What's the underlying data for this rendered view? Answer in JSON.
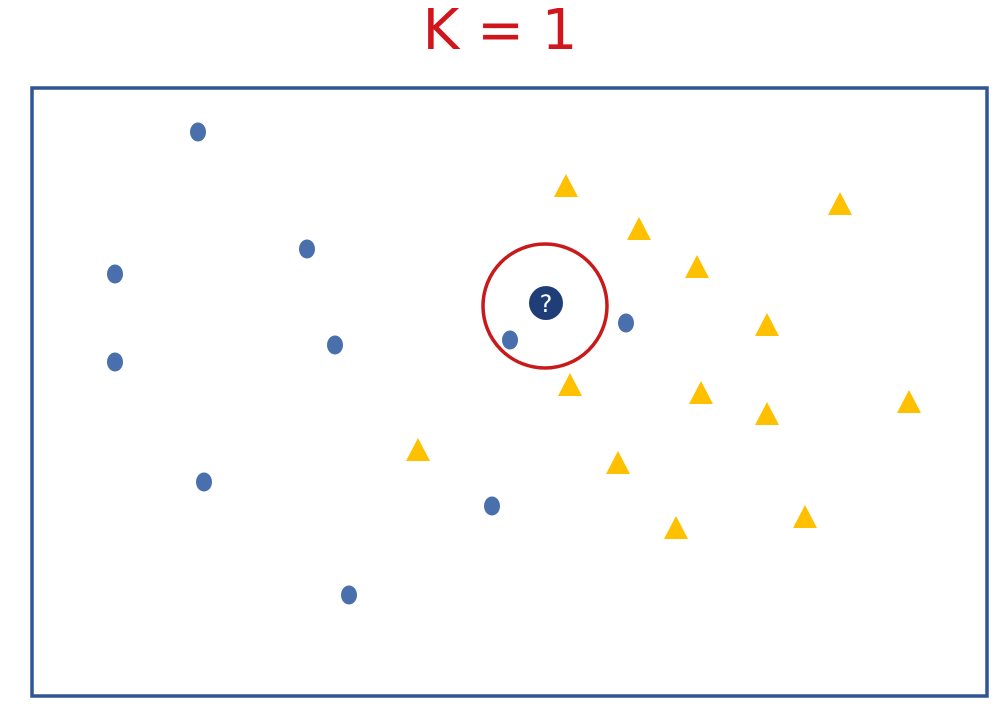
{
  "title": "K = 1",
  "colors": {
    "title": "#d0161c",
    "frame": "#2f5597",
    "class_a": "#4a6fad",
    "class_b": "#ffc000",
    "query": "#1f3e78",
    "query_text": "#ffffff",
    "neighbor_circle": "#c81a1a"
  },
  "legend_shapes": {
    "class_a_shape": "circle",
    "class_b_shape": "triangle"
  },
  "query_point": {
    "label": "?",
    "icon": "question-mark-icon"
  }
}
